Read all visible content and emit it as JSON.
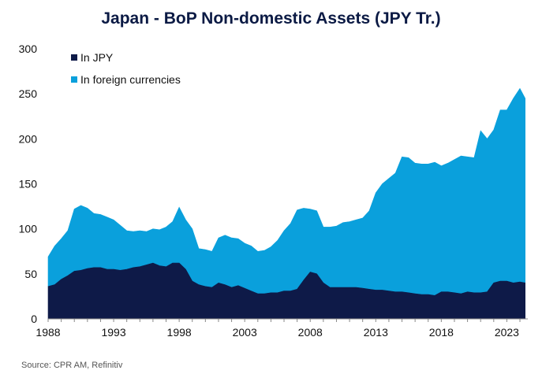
{
  "chart_data": {
    "type": "area",
    "title": "Japan - BoP Non-domestic Assets (JPY Tr.)",
    "source": "Source: CPR AM, Refinitiv",
    "xlabel": "",
    "ylabel": "",
    "ylim": [
      0,
      300
    ],
    "yticks": [
      "0",
      "50",
      "100",
      "150",
      "200",
      "250",
      "300"
    ],
    "xticks": [
      "1988",
      "1993",
      "1998",
      "2003",
      "2008",
      "2013",
      "2018",
      "2023"
    ],
    "xlim": [
      1988,
      2024.6
    ],
    "grid": false,
    "legend_position": "top-left",
    "stacked": true,
    "x": [
      1988,
      1988.5,
      1989,
      1989.5,
      1990,
      1990.5,
      1991,
      1991.5,
      1992,
      1992.5,
      1993,
      1993.5,
      1994,
      1994.5,
      1995,
      1995.5,
      1996,
      1996.5,
      1997,
      1997.5,
      1998,
      1998.5,
      1999,
      1999.5,
      2000,
      2000.5,
      2001,
      2001.5,
      2002,
      2002.5,
      2003,
      2003.5,
      2004,
      2004.5,
      2005,
      2005.5,
      2006,
      2006.5,
      2007,
      2007.5,
      2008,
      2008.5,
      2009,
      2009.5,
      2010,
      2010.5,
      2011,
      2011.5,
      2012,
      2012.5,
      2013,
      2013.5,
      2014,
      2014.5,
      2015,
      2015.5,
      2016,
      2016.5,
      2017,
      2017.5,
      2018,
      2018.5,
      2019,
      2019.5,
      2020,
      2020.5,
      2021,
      2021.5,
      2022,
      2022.5,
      2023,
      2023.5,
      2024,
      2024.4
    ],
    "series": [
      {
        "name": "In JPY",
        "color": "#0e1a48",
        "values": [
          36,
          38,
          44,
          48,
          53,
          54,
          56,
          57,
          57,
          55,
          55,
          54,
          55,
          57,
          58,
          60,
          62,
          59,
          58,
          62,
          62,
          55,
          42,
          38,
          36,
          35,
          40,
          38,
          35,
          37,
          34,
          31,
          28,
          28,
          29,
          29,
          31,
          31,
          33,
          43,
          52,
          50,
          40,
          35,
          35,
          35,
          35,
          35,
          34,
          33,
          32,
          32,
          31,
          30,
          30,
          29,
          28,
          27,
          27,
          26,
          30,
          30,
          29,
          28,
          30,
          29,
          29,
          30,
          40,
          42,
          42,
          40,
          41,
          40
        ]
      },
      {
        "name": "In foreign currencies",
        "color": "#0aa0dc",
        "values": [
          33,
          43,
          45,
          50,
          69,
          72,
          67,
          60,
          59,
          58,
          55,
          50,
          43,
          40,
          40,
          37,
          38,
          40,
          44,
          46,
          62,
          55,
          58,
          40,
          41,
          40,
          50,
          55,
          55,
          52,
          50,
          50,
          47,
          48,
          51,
          58,
          67,
          75,
          88,
          80,
          70,
          70,
          62,
          67,
          68,
          72,
          73,
          75,
          78,
          87,
          108,
          118,
          125,
          132,
          150,
          150,
          145,
          145,
          145,
          148,
          140,
          143,
          148,
          153,
          150,
          150,
          180,
          170,
          170,
          190,
          190,
          205,
          215,
          205
        ]
      }
    ]
  }
}
